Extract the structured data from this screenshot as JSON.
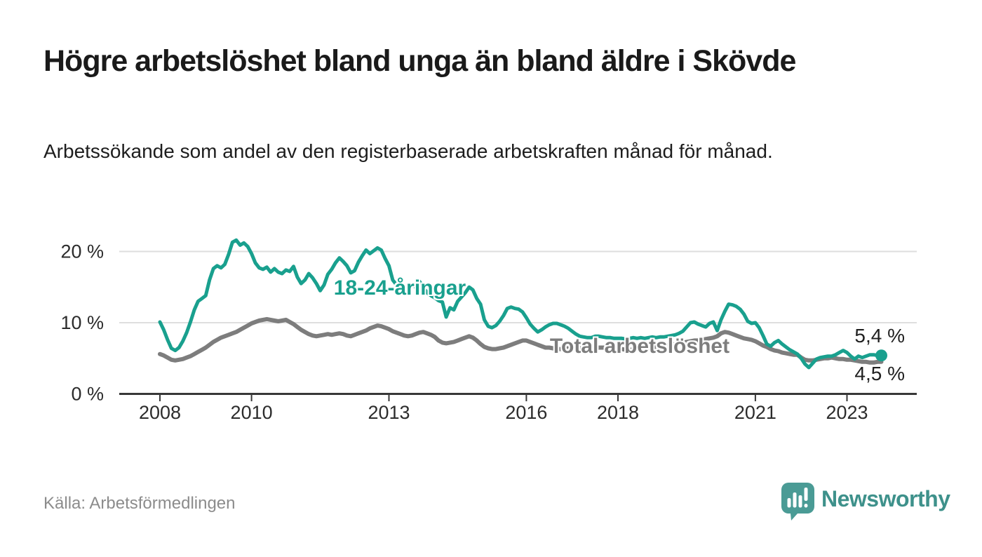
{
  "header": {
    "title": "Högre arbetslöshet bland unga än bland äldre i Skövde",
    "subtitle": "Arbetssökande som andel av den registerbaserade arbetskraften månad för månad."
  },
  "footer": {
    "source": "Källa: Arbetsförmedlingen",
    "brand": "Newsworthy"
  },
  "logo": {
    "icon": "newsworthy-speech-bubble-bar-chart-icon",
    "icon_color": "#4a9b95",
    "text_color": "#3e918b"
  },
  "chart_data": {
    "type": "line",
    "frequency": "monthly",
    "x_start_year": 2008,
    "x_start_month": 1,
    "x_end_year": 2023,
    "x_end_month": 10,
    "ylim": [
      0,
      22.5
    ],
    "grid": true,
    "unit": "%",
    "x_tick_labels": [
      "2008",
      "2010",
      "2013",
      "2016",
      "2018",
      "2021",
      "2023"
    ],
    "y_ticks": [
      {
        "value": 0,
        "label": "0 %"
      },
      {
        "value": 10,
        "label": "10 %"
      },
      {
        "value": 20,
        "label": "20 %"
      }
    ],
    "series": [
      {
        "name": "18-24-åringar",
        "color": "#19a08e",
        "end_label": "5,4 %",
        "end_value": 5.4,
        "end_dot": true,
        "values": [
          10.1,
          9.0,
          7.6,
          6.4,
          6.1,
          6.5,
          7.4,
          8.6,
          10.1,
          11.8,
          13.0,
          13.4,
          13.8,
          16.0,
          17.6,
          18.0,
          17.7,
          18.2,
          19.6,
          21.3,
          21.6,
          20.9,
          21.2,
          20.7,
          19.7,
          18.4,
          17.7,
          17.5,
          17.8,
          17.1,
          17.6,
          17.1,
          16.9,
          17.4,
          17.2,
          17.9,
          16.4,
          15.5,
          16.0,
          16.9,
          16.3,
          15.5,
          14.5,
          15.3,
          16.8,
          17.5,
          18.4,
          19.1,
          18.6,
          18.0,
          17.0,
          17.3,
          18.5,
          19.4,
          20.2,
          19.7,
          20.1,
          20.5,
          20.2,
          19.0,
          18.0,
          16.0,
          15.3,
          15.0,
          14.8,
          15.0,
          15.4,
          15.0,
          15.8,
          15.0,
          14.2,
          13.8,
          13.5,
          13.1,
          12.9,
          10.8,
          12.1,
          11.8,
          13.0,
          13.6,
          14.2,
          15.0,
          14.6,
          13.4,
          12.6,
          10.4,
          9.5,
          9.3,
          9.6,
          10.2,
          11.0,
          12.0,
          12.2,
          12.0,
          11.9,
          11.5,
          10.7,
          9.8,
          9.2,
          8.7,
          9.0,
          9.4,
          9.7,
          9.9,
          9.9,
          9.7,
          9.5,
          9.2,
          8.8,
          8.4,
          8.1,
          8.0,
          7.9,
          7.9,
          8.1,
          8.1,
          8.0,
          7.9,
          7.9,
          7.8,
          7.8,
          7.8,
          7.7,
          7.8,
          7.9,
          7.8,
          7.9,
          7.8,
          7.9,
          8.0,
          7.9,
          8.0,
          8.0,
          8.1,
          8.2,
          8.3,
          8.5,
          8.8,
          9.4,
          10.0,
          10.1,
          9.8,
          9.6,
          9.4,
          9.9,
          10.1,
          8.9,
          10.4,
          11.6,
          12.6,
          12.5,
          12.3,
          11.9,
          11.2,
          10.2,
          9.9,
          10.0,
          9.3,
          8.2,
          7.0,
          6.7,
          7.2,
          7.5,
          7.0,
          6.6,
          6.2,
          5.9,
          5.6,
          5.0,
          4.2,
          3.7,
          4.3,
          4.9,
          5.1,
          5.2,
          5.3,
          5.3,
          5.5,
          5.8,
          6.1,
          5.8,
          5.3,
          4.9,
          5.3,
          5.1,
          5.3,
          5.5,
          5.5,
          5.4,
          5.4
        ]
      },
      {
        "name": "Total arbetslöshet",
        "color": "#7d7d7d",
        "end_label": "4,5 %",
        "end_value": 4.5,
        "end_dot": false,
        "values": [
          5.6,
          5.4,
          5.1,
          4.8,
          4.7,
          4.8,
          4.9,
          5.1,
          5.3,
          5.6,
          5.9,
          6.2,
          6.5,
          6.9,
          7.3,
          7.6,
          7.9,
          8.1,
          8.3,
          8.5,
          8.7,
          9.0,
          9.3,
          9.6,
          9.9,
          10.1,
          10.3,
          10.4,
          10.5,
          10.4,
          10.3,
          10.2,
          10.3,
          10.4,
          10.1,
          9.8,
          9.4,
          9.0,
          8.7,
          8.4,
          8.2,
          8.1,
          8.2,
          8.3,
          8.4,
          8.3,
          8.4,
          8.5,
          8.4,
          8.2,
          8.1,
          8.3,
          8.5,
          8.7,
          8.9,
          9.2,
          9.4,
          9.6,
          9.5,
          9.3,
          9.1,
          8.8,
          8.6,
          8.4,
          8.2,
          8.1,
          8.2,
          8.4,
          8.6,
          8.7,
          8.5,
          8.3,
          8.0,
          7.5,
          7.2,
          7.1,
          7.2,
          7.3,
          7.5,
          7.7,
          7.9,
          8.1,
          7.9,
          7.5,
          7.0,
          6.6,
          6.4,
          6.3,
          6.3,
          6.4,
          6.5,
          6.7,
          6.9,
          7.1,
          7.3,
          7.5,
          7.5,
          7.3,
          7.1,
          6.9,
          6.7,
          6.5,
          6.5,
          6.4,
          6.3,
          6.3,
          6.4,
          6.4,
          6.5,
          6.5,
          6.4,
          6.4,
          6.3,
          6.3,
          6.4,
          6.5,
          6.5,
          6.5,
          6.4,
          6.4,
          6.3,
          6.3,
          6.2,
          6.2,
          6.2,
          6.3,
          6.3,
          6.4,
          6.4,
          6.5,
          6.5,
          6.6,
          6.7,
          6.8,
          6.9,
          7.0,
          7.1,
          7.2,
          7.3,
          7.4,
          7.5,
          7.5,
          7.6,
          7.7,
          7.8,
          7.9,
          8.1,
          8.5,
          8.7,
          8.6,
          8.4,
          8.2,
          8.0,
          7.8,
          7.7,
          7.6,
          7.4,
          7.1,
          6.8,
          6.6,
          6.3,
          6.1,
          6.0,
          5.8,
          5.7,
          5.6,
          5.5,
          5.5,
          5.1,
          4.8,
          4.7,
          4.7,
          4.8,
          4.9,
          5.0,
          5.0,
          5.1,
          5.0,
          4.9,
          4.9,
          4.8,
          4.8,
          4.7,
          4.6,
          4.5,
          4.5,
          4.4,
          4.4,
          4.5,
          4.5
        ]
      }
    ],
    "style": {
      "grid_color": "#dedede",
      "axis_color": "#383838",
      "tick_label_color": "#2c2c2c"
    }
  }
}
